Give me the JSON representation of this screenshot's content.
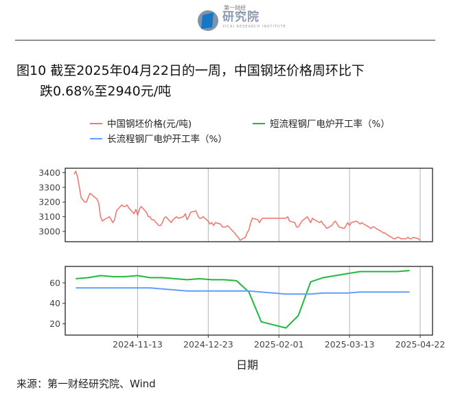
{
  "header": {
    "logo_name": "第一财经",
    "logo_text": "研究院",
    "logo_subtitle": "YICAI RESEARCH INSTITUTE"
  },
  "title": {
    "line1": "图10  截至2025年04月22日的一周，中国钢坯价格周环比下",
    "line2": "跌0.68%至2940元/吨"
  },
  "source": "来源：第一财经研究院、Wind",
  "colors": {
    "price": "#f07a72",
    "short_process": "#1eb83d",
    "long_process": "#619cff",
    "grid": "#b3b3b3"
  },
  "chart_data": {
    "type": "line",
    "xlabel": "日期",
    "x_ticks": [
      "2024-11-13",
      "2024-12-23",
      "2025-02-01",
      "2025-03-13",
      "2025-04-22"
    ],
    "x_range": [
      "2024-10-03",
      "2025-04-29"
    ],
    "legend": [
      {
        "key": "price",
        "label": "中国钢坯价格(元/吨)"
      },
      {
        "key": "short_process",
        "label": "短流程钢厂电炉开工率（%）"
      },
      {
        "key": "long_process",
        "label": "长流程钢厂电炉开工率（%）"
      }
    ],
    "panels": [
      {
        "name": "price",
        "ylim": [
          2930,
          3430
        ],
        "y_ticks": [
          3000,
          3100,
          3200,
          3300,
          3400
        ],
        "series": [
          {
            "key": "price",
            "points": [
              [
                "2024-10-08",
                3390
              ],
              [
                "2024-10-09",
                3410
              ],
              [
                "2024-10-10",
                3370
              ],
              [
                "2024-10-11",
                3300
              ],
              [
                "2024-10-12",
                3230
              ],
              [
                "2024-10-14",
                3200
              ],
              [
                "2024-10-15",
                3200
              ],
              [
                "2024-10-16",
                3230
              ],
              [
                "2024-10-17",
                3260
              ],
              [
                "2024-10-18",
                3250
              ],
              [
                "2024-10-21",
                3220
              ],
              [
                "2024-10-22",
                3190
              ],
              [
                "2024-10-23",
                3100
              ],
              [
                "2024-10-24",
                3070
              ],
              [
                "2024-10-25",
                3080
              ],
              [
                "2024-10-28",
                3100
              ],
              [
                "2024-10-29",
                3080
              ],
              [
                "2024-10-30",
                3060
              ],
              [
                "2024-10-31",
                3080
              ],
              [
                "2024-11-01",
                3140
              ],
              [
                "2024-11-04",
                3180
              ],
              [
                "2024-11-05",
                3170
              ],
              [
                "2024-11-06",
                3170
              ],
              [
                "2024-11-07",
                3180
              ],
              [
                "2024-11-08",
                3160
              ],
              [
                "2024-11-11",
                3120
              ],
              [
                "2024-11-12",
                3150
              ],
              [
                "2024-11-13",
                3110
              ],
              [
                "2024-11-14",
                3150
              ],
              [
                "2024-11-15",
                3170
              ],
              [
                "2024-11-18",
                3130
              ],
              [
                "2024-11-19",
                3100
              ],
              [
                "2024-11-20",
                3100
              ],
              [
                "2024-11-21",
                3080
              ],
              [
                "2024-11-22",
                3080
              ],
              [
                "2024-11-25",
                3040
              ],
              [
                "2024-11-26",
                3040
              ],
              [
                "2024-11-27",
                3060
              ],
              [
                "2024-11-28",
                3090
              ],
              [
                "2024-11-29",
                3100
              ],
              [
                "2024-12-02",
                3060
              ],
              [
                "2024-12-03",
                3080
              ],
              [
                "2024-12-04",
                3090
              ],
              [
                "2024-12-05",
                3100
              ],
              [
                "2024-12-06",
                3090
              ],
              [
                "2024-12-09",
                3100
              ],
              [
                "2024-12-10",
                3120
              ],
              [
                "2024-12-11",
                3080
              ],
              [
                "2024-12-12",
                3100
              ],
              [
                "2024-12-13",
                3130
              ],
              [
                "2024-12-16",
                3140
              ],
              [
                "2024-12-17",
                3110
              ],
              [
                "2024-12-18",
                3090
              ],
              [
                "2024-12-19",
                3090
              ],
              [
                "2024-12-20",
                3100
              ],
              [
                "2024-12-23",
                3070
              ],
              [
                "2024-12-24",
                3050
              ],
              [
                "2024-12-25",
                3060
              ],
              [
                "2024-12-26",
                3040
              ],
              [
                "2024-12-27",
                3060
              ],
              [
                "2024-12-30",
                3050
              ],
              [
                "2024-12-31",
                3030
              ],
              [
                "2025-01-02",
                3030
              ],
              [
                "2025-01-03",
                3040
              ],
              [
                "2025-01-06",
                3000
              ],
              [
                "2025-01-07",
                2990
              ],
              [
                "2025-01-08",
                2970
              ],
              [
                "2025-01-09",
                2960
              ],
              [
                "2025-01-10",
                2940
              ],
              [
                "2025-01-13",
                2960
              ],
              [
                "2025-01-14",
                2990
              ],
              [
                "2025-01-15",
                3010
              ],
              [
                "2025-01-16",
                3060
              ],
              [
                "2025-01-17",
                3090
              ],
              [
                "2025-01-20",
                3080
              ],
              [
                "2025-01-21",
                3060
              ],
              [
                "2025-01-22",
                3080
              ],
              [
                "2025-01-23",
                3090
              ],
              [
                "2025-01-24",
                3090
              ],
              [
                "2025-02-05",
                3090
              ],
              [
                "2025-02-06",
                3100
              ],
              [
                "2025-02-07",
                3070
              ],
              [
                "2025-02-10",
                3060
              ],
              [
                "2025-02-11",
                3030
              ],
              [
                "2025-02-12",
                3030
              ],
              [
                "2025-02-13",
                3050
              ],
              [
                "2025-02-14",
                3070
              ],
              [
                "2025-02-17",
                3100
              ],
              [
                "2025-02-18",
                3080
              ],
              [
                "2025-02-19",
                3060
              ],
              [
                "2025-02-20",
                3090
              ],
              [
                "2025-02-21",
                3080
              ],
              [
                "2025-02-24",
                3060
              ],
              [
                "2025-02-25",
                3070
              ],
              [
                "2025-02-26",
                3050
              ],
              [
                "2025-02-27",
                3040
              ],
              [
                "2025-02-28",
                3020
              ],
              [
                "2025-03-03",
                3040
              ],
              [
                "2025-03-04",
                3060
              ],
              [
                "2025-03-05",
                3070
              ],
              [
                "2025-03-06",
                3050
              ],
              [
                "2025-03-07",
                3030
              ],
              [
                "2025-03-10",
                3020
              ],
              [
                "2025-03-11",
                3040
              ],
              [
                "2025-03-12",
                3060
              ],
              [
                "2025-03-13",
                3040
              ],
              [
                "2025-03-14",
                3060
              ],
              [
                "2025-03-17",
                3070
              ],
              [
                "2025-03-18",
                3060
              ],
              [
                "2025-03-19",
                3050
              ],
              [
                "2025-03-20",
                3060
              ],
              [
                "2025-03-21",
                3050
              ],
              [
                "2025-03-24",
                3030
              ],
              [
                "2025-03-25",
                3020
              ],
              [
                "2025-03-26",
                3030
              ],
              [
                "2025-03-27",
                3030
              ],
              [
                "2025-03-28",
                3020
              ],
              [
                "2025-03-31",
                3000
              ],
              [
                "2025-04-01",
                2990
              ],
              [
                "2025-04-02",
                2990
              ],
              [
                "2025-04-03",
                2980
              ],
              [
                "2025-04-07",
                2950
              ],
              [
                "2025-04-08",
                2950
              ],
              [
                "2025-04-09",
                2960
              ],
              [
                "2025-04-10",
                2960
              ],
              [
                "2025-04-11",
                2950
              ],
              [
                "2025-04-14",
                2950
              ],
              [
                "2025-04-15",
                2960
              ],
              [
                "2025-04-16",
                2950
              ],
              [
                "2025-04-17",
                2950
              ],
              [
                "2025-04-18",
                2960
              ],
              [
                "2025-04-21",
                2950
              ],
              [
                "2025-04-22",
                2940
              ]
            ]
          }
        ]
      },
      {
        "name": "utilization",
        "ylim": [
          9,
          76
        ],
        "y_ticks": [
          20,
          40,
          60
        ],
        "series": [
          {
            "key": "short_process",
            "points": [
              [
                "2024-10-09",
                64
              ],
              [
                "2024-10-16",
                65
              ],
              [
                "2024-10-23",
                67
              ],
              [
                "2024-10-30",
                66
              ],
              [
                "2024-11-06",
                66
              ],
              [
                "2024-11-13",
                67
              ],
              [
                "2024-11-20",
                65
              ],
              [
                "2024-11-27",
                65
              ],
              [
                "2024-12-04",
                64
              ],
              [
                "2024-12-11",
                63
              ],
              [
                "2024-12-18",
                64
              ],
              [
                "2024-12-25",
                63
              ],
              [
                "2025-01-01",
                63
              ],
              [
                "2025-01-08",
                62
              ],
              [
                "2025-01-15",
                51
              ],
              [
                "2025-01-22",
                22
              ],
              [
                "2025-02-05",
                16
              ],
              [
                "2025-02-12",
                28
              ],
              [
                "2025-02-19",
                61
              ],
              [
                "2025-02-26",
                65
              ],
              [
                "2025-03-05",
                67
              ],
              [
                "2025-03-12",
                69
              ],
              [
                "2025-03-19",
                71
              ],
              [
                "2025-03-26",
                71
              ],
              [
                "2025-04-02",
                71
              ],
              [
                "2025-04-09",
                71
              ],
              [
                "2025-04-16",
                72
              ]
            ]
          },
          {
            "key": "long_process",
            "points": [
              [
                "2024-10-09",
                55
              ],
              [
                "2024-10-16",
                55
              ],
              [
                "2024-10-23",
                55
              ],
              [
                "2024-10-30",
                55
              ],
              [
                "2024-11-06",
                55
              ],
              [
                "2024-11-13",
                55
              ],
              [
                "2024-11-20",
                55
              ],
              [
                "2024-11-27",
                54
              ],
              [
                "2024-12-04",
                53
              ],
              [
                "2024-12-11",
                52
              ],
              [
                "2024-12-18",
                52
              ],
              [
                "2024-12-25",
                52
              ],
              [
                "2025-01-01",
                52
              ],
              [
                "2025-01-08",
                52
              ],
              [
                "2025-01-15",
                52
              ],
              [
                "2025-01-22",
                51
              ],
              [
                "2025-01-29",
                50
              ],
              [
                "2025-02-05",
                49
              ],
              [
                "2025-02-12",
                49
              ],
              [
                "2025-02-19",
                49
              ],
              [
                "2025-02-26",
                50
              ],
              [
                "2025-03-05",
                50
              ],
              [
                "2025-03-12",
                50
              ],
              [
                "2025-03-19",
                51
              ],
              [
                "2025-03-26",
                51
              ],
              [
                "2025-04-02",
                51
              ],
              [
                "2025-04-09",
                51
              ],
              [
                "2025-04-16",
                51
              ]
            ]
          }
        ]
      }
    ]
  }
}
